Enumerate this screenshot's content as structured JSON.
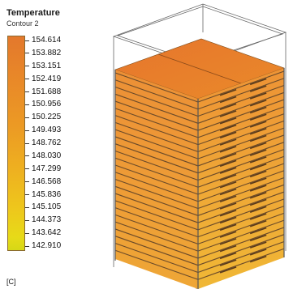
{
  "legend": {
    "title": "Temperature",
    "subtitle": "Contour 2",
    "unit": "[C]",
    "ticks": [
      "154.614",
      "153.882",
      "153.151",
      "152.419",
      "151.688",
      "150.956",
      "150.225",
      "149.493",
      "148.762",
      "148.030",
      "147.299",
      "146.568",
      "145.836",
      "145.105",
      "144.373",
      "143.642",
      "142.910"
    ],
    "max": 154.614,
    "min": 142.91,
    "colors": {
      "high": "#e3782c",
      "mid": "#eeb020",
      "low": "#d6d816"
    }
  },
  "model": {
    "description_icon": "battery-pack-fin-stack",
    "fin_count": 26,
    "colors": {
      "hot": "#e67a2c",
      "warm": "#ee9e2a",
      "frame": "#555555"
    }
  }
}
